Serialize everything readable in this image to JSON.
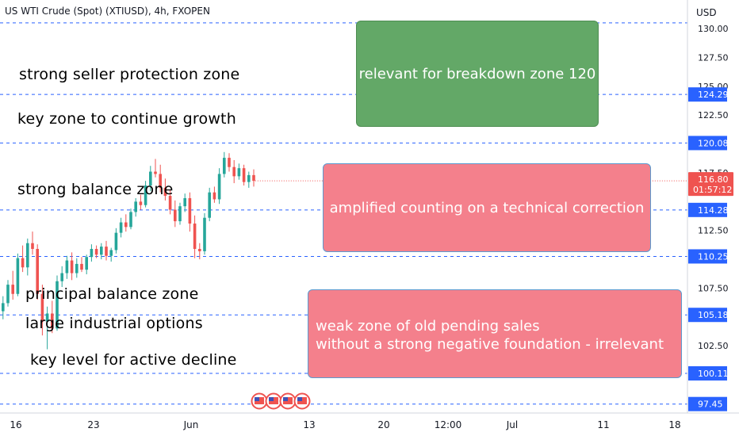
{
  "title": "US WTI Crude (Spot) (XTIUSD), 4h, FXOPEN",
  "currency": "USD",
  "annotations": {
    "seller_zone": "strong seller protection zone",
    "key_growth": "key zone to continue growth",
    "balance_zone": "strong balance zone",
    "principal_zone": "principal balance zone",
    "industrial_options": "large industrial options",
    "key_decline": "key level for active decline",
    "breakdown_box": "relevant for breakdown zone 120",
    "correction_box": "amplified counting on a technical correction",
    "weak_zone_line1": "weak zone of  old pending sales",
    "weak_zone_line2": "without a strong negative foundation - irrelevant"
  },
  "chart_data": {
    "type": "candlestick",
    "title": "US WTI Crude (Spot) (XTIUSD), 4h, FXOPEN",
    "y_axis": {
      "unit": "USD",
      "range": [
        96.5,
        130.5
      ],
      "ticks": [
        "127.50",
        "125.00",
        "122.50",
        "117.50",
        "112.50",
        "107.50",
        "102.50"
      ],
      "partial_top_tick": "130.00"
    },
    "x_axis": {
      "ticks": [
        "16",
        "23",
        "Jun",
        "13",
        "20",
        "12:00",
        "Jul",
        "11",
        "18"
      ]
    },
    "levels": [
      {
        "value": 130.5,
        "label": null
      },
      {
        "value": 124.29,
        "label": "124.29"
      },
      {
        "value": 120.08,
        "label": "120.08"
      },
      {
        "value": 114.28,
        "label": "114.28"
      },
      {
        "value": 110.25,
        "label": "110.25"
      },
      {
        "value": 105.18,
        "label": "105.18"
      },
      {
        "value": 100.11,
        "label": "100.11"
      },
      {
        "value": 97.45,
        "label": "97.45"
      }
    ],
    "last_price": {
      "value": 116.8,
      "label": "116.80",
      "countdown": "01:57:12"
    },
    "candles": [
      [
        105.5,
        106.8,
        104.8,
        106.2
      ],
      [
        106.2,
        108.2,
        105.9,
        107.8
      ],
      [
        107.8,
        109.0,
        106.5,
        107.0
      ],
      [
        107.0,
        110.5,
        106.8,
        110.1
      ],
      [
        110.1,
        111.2,
        108.9,
        109.3
      ],
      [
        109.3,
        111.8,
        108.6,
        111.4
      ],
      [
        111.4,
        112.4,
        110.4,
        110.9
      ],
      [
        110.9,
        111.3,
        106.5,
        107.0
      ],
      [
        107.0,
        107.8,
        103.4,
        104.6
      ],
      [
        104.6,
        105.9,
        102.2,
        105.3
      ],
      [
        105.3,
        106.4,
        103.6,
        104.0
      ],
      [
        104.0,
        108.6,
        103.8,
        108.1
      ],
      [
        108.1,
        109.4,
        107.6,
        108.8
      ],
      [
        108.8,
        110.3,
        108.3,
        109.9
      ],
      [
        109.9,
        110.6,
        108.2,
        108.8
      ],
      [
        108.8,
        110.1,
        108.4,
        109.6
      ],
      [
        109.6,
        110.2,
        108.9,
        109.1
      ],
      [
        109.1,
        110.4,
        108.7,
        110.2
      ],
      [
        110.2,
        111.3,
        109.8,
        110.9
      ],
      [
        110.9,
        111.2,
        110.1,
        110.4
      ],
      [
        110.4,
        111.4,
        110.0,
        111.1
      ],
      [
        111.1,
        111.6,
        109.9,
        110.3
      ],
      [
        110.3,
        111.0,
        109.8,
        110.8
      ],
      [
        110.8,
        112.7,
        110.5,
        112.3
      ],
      [
        112.3,
        113.6,
        111.9,
        113.2
      ],
      [
        113.2,
        113.9,
        112.4,
        112.8
      ],
      [
        112.8,
        114.4,
        112.6,
        114.1
      ],
      [
        114.1,
        115.3,
        113.7,
        115.0
      ],
      [
        115.0,
        115.6,
        114.3,
        114.7
      ],
      [
        114.7,
        116.8,
        114.5,
        116.4
      ],
      [
        116.4,
        118.1,
        115.9,
        117.6
      ],
      [
        117.6,
        118.7,
        117.1,
        117.4
      ],
      [
        117.4,
        118.2,
        115.8,
        116.2
      ],
      [
        116.2,
        117.0,
        115.1,
        115.5
      ],
      [
        115.5,
        116.0,
        113.9,
        114.3
      ],
      [
        114.3,
        115.1,
        112.8,
        113.3
      ],
      [
        113.3,
        114.9,
        113.0,
        114.6
      ],
      [
        114.6,
        115.7,
        114.1,
        115.3
      ],
      [
        115.3,
        115.8,
        112.4,
        113.1
      ],
      [
        113.1,
        113.8,
        110.1,
        110.9
      ],
      [
        110.9,
        111.4,
        110.0,
        110.7
      ],
      [
        110.7,
        114.0,
        110.4,
        113.6
      ],
      [
        113.6,
        116.2,
        113.3,
        115.8
      ],
      [
        115.8,
        116.3,
        114.9,
        115.2
      ],
      [
        115.2,
        117.9,
        114.8,
        117.4
      ],
      [
        117.4,
        119.3,
        117.1,
        118.8
      ],
      [
        118.8,
        119.2,
        117.6,
        118.0
      ],
      [
        118.0,
        118.6,
        116.6,
        117.2
      ],
      [
        117.2,
        118.3,
        116.9,
        117.9
      ],
      [
        117.9,
        118.2,
        116.4,
        116.7
      ],
      [
        116.7,
        117.6,
        116.2,
        117.3
      ],
      [
        117.3,
        117.8,
        116.3,
        116.8
      ]
    ]
  },
  "colors": {
    "up": "#26a69a",
    "down": "#ef5350",
    "level_line": "#2962ff",
    "price_label": "#2962ff",
    "last_price": "#ef5350",
    "green_box": "#63a867",
    "red_box": "#f4808c"
  },
  "icons": [
    "us-flag-event-icon",
    "us-flag-event-icon",
    "us-flag-event-icon",
    "us-flag-event-icon"
  ]
}
